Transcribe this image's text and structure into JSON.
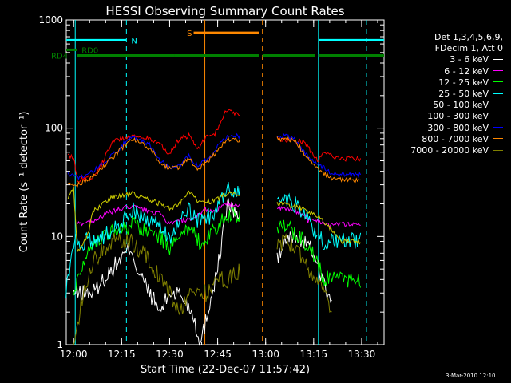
{
  "chart_data": {
    "type": "line",
    "title": "HESSI Observing Summary Count Rates",
    "xlabel": "Start Time (22-Dec-07 11:57:42)",
    "ylabel": "Count Rate (s⁻¹ detector⁻¹)",
    "x_ticks": [
      "12:00",
      "12:15",
      "12:30",
      "12:45",
      "13:00",
      "13:15",
      "13:30"
    ],
    "y_ticks": [
      "1",
      "10",
      "100",
      "1000"
    ],
    "y_scale": "log",
    "ylim": [
      1,
      1000
    ],
    "xlim": [
      "11:57:42",
      "13:37:00"
    ],
    "legend": {
      "placement": "right",
      "header": [
        "Det 1,3,4,5,6,9,",
        "FDecim 1, Att 0"
      ],
      "entries": [
        {
          "label": "3 - 6 keV",
          "color": "#ffffff"
        },
        {
          "label": "6 - 12 keV",
          "color": "#ff00ff"
        },
        {
          "label": "12 - 25 keV",
          "color": "#00ff00"
        },
        {
          "label": "25 - 50 keV",
          "color": "#00ffff"
        },
        {
          "label": "50 - 100 keV",
          "color": "#cccc00"
        },
        {
          "label": "100 - 300 keV",
          "color": "#ff0000"
        },
        {
          "label": "300 - 800 keV",
          "color": "#0000ff"
        },
        {
          "label": "800 - 7000 keV",
          "color": "#ff8800"
        },
        {
          "label": "7000 - 20000 keV",
          "color": "#808000"
        }
      ]
    },
    "flags": [
      {
        "label": "N",
        "color": "#00ffff",
        "value": 650,
        "intervals": [
          [
            "11:57:42",
            "12:16:30"
          ],
          [
            "13:16:30",
            "13:37:00"
          ]
        ]
      },
      {
        "label": "S",
        "color": "#ff8800",
        "value": 760,
        "intervals": [
          [
            "12:37:30",
            "12:58:00"
          ]
        ]
      },
      {
        "label": "RD0",
        "color": "#008000",
        "value": 530,
        "intervals": [
          [
            "11:57:42",
            "12:01:00"
          ]
        ]
      },
      {
        "label": "RD4",
        "color": "#008000",
        "value": 470,
        "intervals": [
          [
            "12:01:00",
            "12:31:30"
          ],
          [
            "12:31:30",
            "12:58:00"
          ],
          [
            "12:59:00",
            "13:15:30"
          ],
          [
            "13:16:30",
            "13:37:00"
          ]
        ]
      }
    ],
    "markers": [
      {
        "color": "#00ffff",
        "style": "dashed",
        "times": [
          "12:16:30",
          "13:31:30"
        ]
      },
      {
        "color": "#00ffff",
        "style": "solid",
        "times": [
          "12:00:30",
          "13:16:30"
        ]
      },
      {
        "color": "#ff8800",
        "style": "solid",
        "times": [
          "12:41:00"
        ]
      },
      {
        "color": "#ff8800",
        "style": "dashed",
        "times": [
          "12:59:00"
        ]
      }
    ],
    "gap": [
      "12:52:00",
      "13:03:30"
    ],
    "series": [
      {
        "name": "3 - 6 keV",
        "color": "#ffffff",
        "values": [
          [
            12.0,
            3
          ],
          [
            12.1,
            3
          ],
          [
            12.2,
            5
          ],
          [
            12.3,
            8
          ],
          [
            12.33,
            5
          ],
          [
            12.45,
            2
          ],
          [
            12.5,
            3
          ],
          [
            12.55,
            3
          ],
          [
            12.62,
            2
          ],
          [
            12.66,
            1
          ],
          [
            12.72,
            3
          ],
          [
            12.75,
            5
          ],
          [
            12.8,
            20
          ],
          [
            13.06,
            6
          ],
          [
            13.1,
            9
          ],
          [
            13.15,
            10
          ],
          [
            13.2,
            9
          ],
          [
            13.25,
            7
          ],
          [
            13.28,
            5
          ],
          [
            13.32,
            3
          ],
          [
            13.35,
            2
          ]
        ]
      },
      {
        "name": "6 - 12 keV",
        "color": "#ff00ff",
        "values": [
          [
            12.02,
            13
          ],
          [
            12.1,
            14
          ],
          [
            12.2,
            17
          ],
          [
            12.3,
            19
          ],
          [
            12.45,
            16
          ],
          [
            12.5,
            13
          ],
          [
            12.55,
            14
          ],
          [
            12.62,
            14
          ],
          [
            12.68,
            18
          ],
          [
            12.73,
            17
          ],
          [
            12.8,
            20
          ],
          [
            13.06,
            18
          ],
          [
            13.1,
            18
          ],
          [
            13.15,
            17
          ],
          [
            13.2,
            16
          ],
          [
            13.22,
            14
          ],
          [
            13.27,
            14
          ],
          [
            13.32,
            13
          ],
          [
            13.43,
            13
          ],
          [
            13.5,
            13
          ]
        ]
      },
      {
        "name": "12 - 25 keV",
        "color": "#00ff00",
        "values": [
          [
            12.0,
            3
          ],
          [
            12.05,
            6
          ],
          [
            12.1,
            9
          ],
          [
            12.2,
            11
          ],
          [
            12.3,
            13
          ],
          [
            12.45,
            10
          ],
          [
            12.5,
            8
          ],
          [
            12.55,
            9
          ],
          [
            12.6,
            12
          ],
          [
            12.65,
            9
          ],
          [
            12.73,
            11
          ],
          [
            12.8,
            16
          ],
          [
            13.06,
            13
          ],
          [
            13.1,
            12
          ],
          [
            13.15,
            11
          ],
          [
            13.2,
            9
          ],
          [
            13.25,
            7
          ],
          [
            13.3,
            4
          ],
          [
            13.4,
            4
          ],
          [
            13.5,
            4
          ]
        ]
      },
      {
        "name": "25 - 50 keV",
        "color": "#00ffff",
        "values": [
          [
            11.96,
            3
          ],
          [
            12.0,
            9
          ],
          [
            12.05,
            9
          ],
          [
            12.1,
            9
          ],
          [
            12.15,
            10
          ],
          [
            12.2,
            11
          ],
          [
            12.25,
            13
          ],
          [
            12.3,
            18
          ],
          [
            12.45,
            12
          ],
          [
            12.5,
            10
          ],
          [
            12.55,
            13
          ],
          [
            12.6,
            17
          ],
          [
            12.65,
            14
          ],
          [
            12.73,
            16
          ],
          [
            12.8,
            27
          ],
          [
            13.06,
            23
          ],
          [
            13.1,
            22
          ],
          [
            13.15,
            20
          ],
          [
            13.2,
            17
          ],
          [
            13.25,
            11
          ],
          [
            13.3,
            9
          ],
          [
            13.4,
            9
          ],
          [
            13.5,
            9
          ]
        ]
      },
      {
        "name": "50 - 100 keV",
        "color": "#cccc00",
        "values": [
          [
            11.97,
            23
          ],
          [
            12.0,
            28
          ],
          [
            12.02,
            7
          ],
          [
            12.08,
            11
          ],
          [
            12.1,
            17
          ],
          [
            12.2,
            23
          ],
          [
            12.3,
            25
          ],
          [
            12.45,
            20
          ],
          [
            12.5,
            18
          ],
          [
            12.55,
            20
          ],
          [
            12.6,
            26
          ],
          [
            12.65,
            21
          ],
          [
            12.73,
            21
          ],
          [
            12.8,
            25
          ],
          [
            13.06,
            20
          ],
          [
            13.1,
            20
          ],
          [
            13.15,
            19
          ],
          [
            13.2,
            18
          ],
          [
            13.25,
            16
          ],
          [
            13.3,
            14
          ],
          [
            13.4,
            9
          ],
          [
            13.5,
            9
          ]
        ]
      },
      {
        "name": "100 - 300 keV",
        "color": "#ff0000",
        "values": [
          [
            11.97,
            55
          ],
          [
            12.0,
            55
          ],
          [
            12.02,
            33
          ],
          [
            12.1,
            36
          ],
          [
            12.15,
            48
          ],
          [
            12.2,
            75
          ],
          [
            12.3,
            85
          ],
          [
            12.4,
            80
          ],
          [
            12.45,
            70
          ],
          [
            12.5,
            58
          ],
          [
            12.55,
            80
          ],
          [
            12.6,
            85
          ],
          [
            12.65,
            65
          ],
          [
            12.7,
            90
          ],
          [
            12.73,
            85
          ],
          [
            12.8,
            150
          ],
          [
            13.06,
            80
          ],
          [
            13.1,
            78
          ],
          [
            13.15,
            76
          ],
          [
            13.2,
            75
          ],
          [
            13.27,
            50
          ],
          [
            13.3,
            60
          ],
          [
            13.35,
            55
          ],
          [
            13.4,
            52
          ],
          [
            13.5,
            52
          ]
        ]
      },
      {
        "name": "300 - 800 keV",
        "color": "#0000ff",
        "values": [
          [
            11.97,
            38
          ],
          [
            12.02,
            35
          ],
          [
            12.1,
            40
          ],
          [
            12.2,
            56
          ],
          [
            12.3,
            84
          ],
          [
            12.4,
            70
          ],
          [
            12.45,
            50
          ],
          [
            12.5,
            43
          ],
          [
            12.55,
            45
          ],
          [
            12.6,
            55
          ],
          [
            12.65,
            45
          ],
          [
            12.7,
            53
          ],
          [
            12.8,
            85
          ],
          [
            13.06,
            85
          ],
          [
            13.1,
            84
          ],
          [
            13.15,
            82
          ],
          [
            13.2,
            60
          ],
          [
            13.27,
            47
          ],
          [
            13.35,
            38
          ],
          [
            13.5,
            37
          ]
        ]
      },
      {
        "name": "800 - 7000 keV",
        "color": "#ff8800",
        "values": [
          [
            11.97,
            30
          ],
          [
            12.02,
            30
          ],
          [
            12.1,
            35
          ],
          [
            12.2,
            53
          ],
          [
            12.3,
            80
          ],
          [
            12.4,
            65
          ],
          [
            12.45,
            48
          ],
          [
            12.5,
            42
          ],
          [
            12.55,
            44
          ],
          [
            12.6,
            52
          ],
          [
            12.65,
            42
          ],
          [
            12.7,
            50
          ],
          [
            12.8,
            78
          ],
          [
            13.06,
            80
          ],
          [
            13.1,
            79
          ],
          [
            13.15,
            78
          ],
          [
            13.2,
            58
          ],
          [
            13.27,
            42
          ],
          [
            13.35,
            34
          ],
          [
            13.5,
            33
          ]
        ]
      },
      {
        "name": "7000 - 20000 keV",
        "color": "#808000",
        "values": [
          [
            12.0,
            1
          ],
          [
            12.05,
            3
          ],
          [
            12.1,
            6
          ],
          [
            12.2,
            9
          ],
          [
            12.3,
            9
          ],
          [
            12.4,
            6
          ],
          [
            12.45,
            4
          ],
          [
            12.5,
            3
          ],
          [
            12.55,
            2
          ],
          [
            12.6,
            3
          ],
          [
            12.65,
            3
          ],
          [
            12.7,
            3
          ],
          [
            12.75,
            4
          ],
          [
            12.8,
            4
          ],
          [
            13.06,
            8
          ],
          [
            13.1,
            9
          ],
          [
            13.15,
            8
          ],
          [
            13.2,
            6
          ],
          [
            13.25,
            4
          ],
          [
            13.3,
            3
          ],
          [
            13.35,
            2
          ]
        ]
      }
    ]
  },
  "footer": {
    "date_stamp": "3-Mar-2010 12:10"
  }
}
